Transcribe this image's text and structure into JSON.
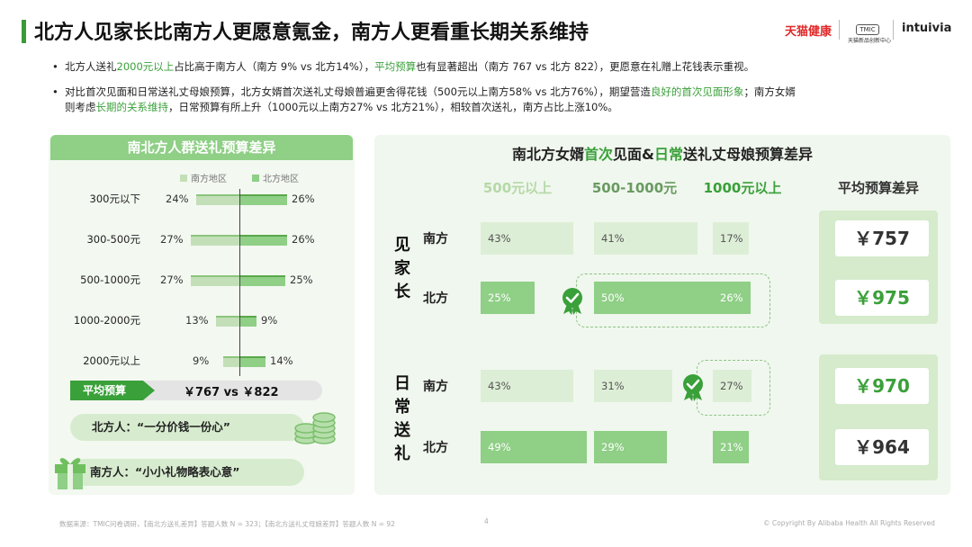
{
  "header": {
    "title": "北方人见家长比南方人更愿意氪金，南方人更看重长期关系维持",
    "logo_tmall": "天猫健康",
    "logo_tmic": "TMIC",
    "logo_tmic_sub": "天猫新品创新中心",
    "logo_intuivia": "intuivia"
  },
  "bullets": [
    {
      "t1": "北方人送礼",
      "h1": "2000元以上",
      "t2": "占比高于南方人（南方 9% vs 北方14%），",
      "h2": "平均预算",
      "t3": "也有显著超出（南方 767 vs 北方 822），更愿意在礼赠上花钱表示重视。"
    },
    {
      "line1_a": "对比首次见面和日常送礼丈母娘预算，北方女婿首次送礼丈母娘普遍更舍得花钱（500元以上南方58% vs 北方76%），期望营造",
      "line1_h": "良好的首次见面形象",
      "line1_b": "；南方女婿",
      "line2_a": "则考虑",
      "line2_h": "长期的关系维持",
      "line2_b": "，日常预算有所上升（1000元以上南方27% vs 北方21%），相较首次送礼，南方占比上涨10%。"
    }
  ],
  "left_chart": {
    "title": "南北方人群送礼预算差异",
    "legend": [
      "南方地区",
      "北方地区"
    ],
    "avg_label": "平均预算",
    "avg_value": "￥767   vs   ￥822",
    "quote_north": "北方人：“一分价钱一份心”",
    "quote_south": "南方人：“小小礼物略表心意”"
  },
  "right_chart": {
    "title_a": "南北方女婿",
    "title_h1": "首次",
    "title_b": "见面&",
    "title_h2": "日常",
    "title_c": "送礼丈母娘预算差异",
    "col_headers": [
      "500元以上",
      "500-1000元",
      "1000元以上",
      "平均预算差异"
    ],
    "group_meet": [
      "见",
      "家",
      "长"
    ],
    "group_daily": [
      "日",
      "常",
      "送",
      "礼"
    ],
    "south": "南方",
    "north": "北方"
  },
  "chart_data": [
    {
      "type": "bar",
      "title": "南北方人群送礼预算差异",
      "categories": [
        "300元以下",
        "300-500元",
        "500-1000元",
        "1000-2000元",
        "2000元以上"
      ],
      "series": [
        {
          "name": "南方地区",
          "values": [
            24,
            27,
            27,
            13,
            9
          ],
          "labels": [
            "24%",
            "27%",
            "27%",
            "13%",
            "9%"
          ]
        },
        {
          "name": "北方地区",
          "values": [
            26,
            26,
            25,
            9,
            14
          ],
          "labels": [
            "26%",
            "26%",
            "25%",
            "9%",
            "14%"
          ]
        }
      ]
    },
    {
      "type": "table",
      "title": "南北方女婿首次见面&日常送礼丈母娘预算差异",
      "columns": [
        "500元以上",
        "500-1000元",
        "1000元以上",
        "平均预算差异"
      ],
      "rows": [
        {
          "group": "见家长",
          "region": "南方",
          "values": [
            43,
            41,
            17
          ],
          "labels": [
            "43%",
            "41%",
            "17%"
          ],
          "avg": "￥757"
        },
        {
          "group": "见家长",
          "region": "北方",
          "values": [
            25,
            50,
            26
          ],
          "labels": [
            "25%",
            "50%",
            "26%"
          ],
          "avg": "￥975"
        },
        {
          "group": "日常送礼",
          "region": "南方",
          "values": [
            43,
            31,
            27
          ],
          "labels": [
            "43%",
            "31%",
            "27%"
          ],
          "avg": "￥970"
        },
        {
          "group": "日常送礼",
          "region": "北方",
          "values": [
            49,
            29,
            21
          ],
          "labels": [
            "49%",
            "29%",
            "21%"
          ],
          "avg": "￥964"
        }
      ],
      "colors": {
        "south": "#ddeed6",
        "north": "#8fcf86",
        "accent": "#3aa03a"
      }
    }
  ],
  "footer": {
    "source": "数据来源：TMIC问卷调研，【南北方送礼差异】答题人数 N = 323；【南北方送礼丈母娘差异】答题人数 N = 92",
    "page": "4",
    "copyright": "© Copyright By Alibaba Health All Rights Reserved"
  }
}
